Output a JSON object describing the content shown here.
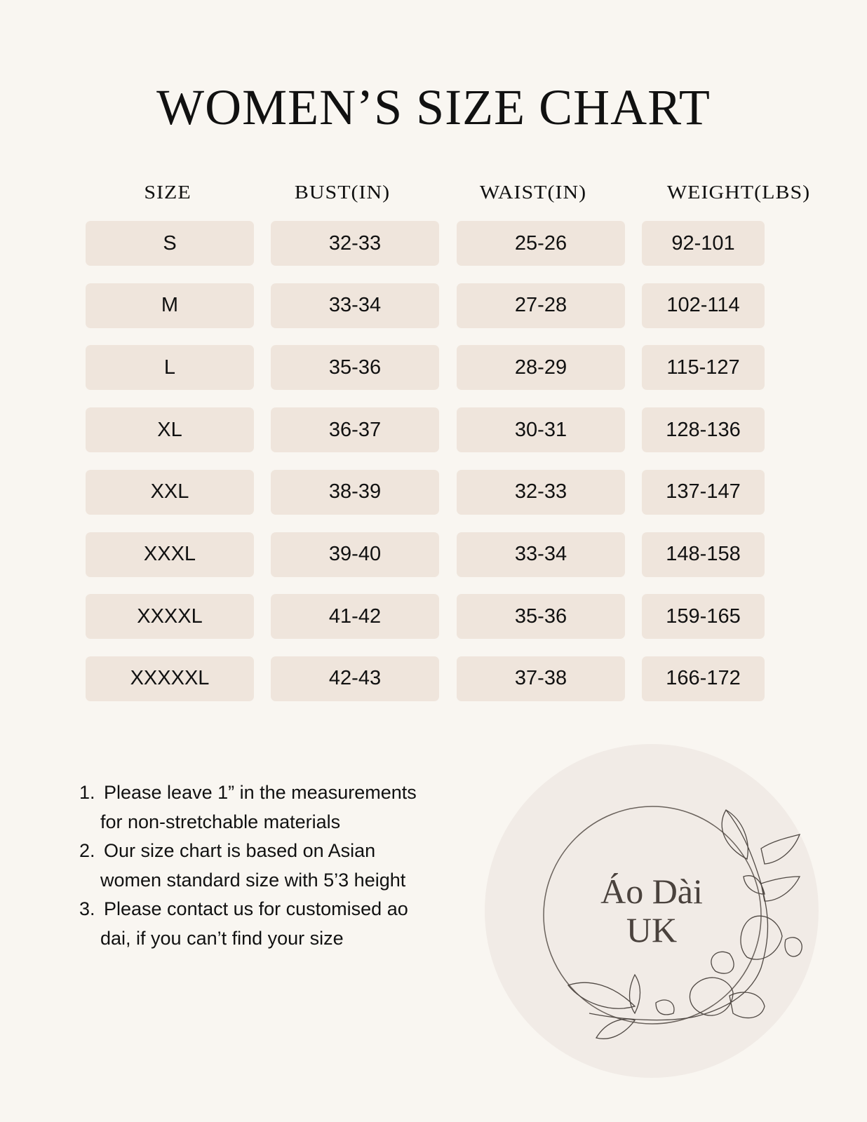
{
  "title": "WOMEN’S SIZE CHART",
  "table": {
    "headers": [
      "SIZE",
      "BUST(IN)",
      "WAIST(IN)",
      "WEIGHT(LBS)"
    ],
    "rows": [
      [
        "S",
        "32-33",
        "25-26",
        "92-101"
      ],
      [
        "M",
        "33-34",
        "27-28",
        "102-114"
      ],
      [
        "L",
        "35-36",
        "28-29",
        "115-127"
      ],
      [
        "XL",
        "36-37",
        "30-31",
        "128-136"
      ],
      [
        "XXL",
        "38-39",
        "32-33",
        "137-147"
      ],
      [
        "XXXL",
        "39-40",
        "33-34",
        "148-158"
      ],
      [
        "XXXXL",
        "41-42",
        "35-36",
        "159-165"
      ],
      [
        "XXXXXL",
        "42-43",
        "37-38",
        "166-172"
      ]
    ]
  },
  "notes": [
    {
      "num": "1.",
      "line1": "Please leave 1” in the measurements",
      "line2": "for non-stretchable materials"
    },
    {
      "num": "2.",
      "line1": "Our size chart is based on Asian",
      "line2": "women standard size with 5’3 height"
    },
    {
      "num": "3.",
      "line1": "Please contact us for customised ao",
      "line2": "dai, if you can’t find your size"
    }
  ],
  "logo": {
    "line1": "Áo Dài",
    "line2": "UK"
  },
  "colors": {
    "background": "#f9f6f1",
    "cell": "#efe5dc",
    "logo_circle": "#f1ebe6",
    "logo_ink": "#4a423d"
  }
}
